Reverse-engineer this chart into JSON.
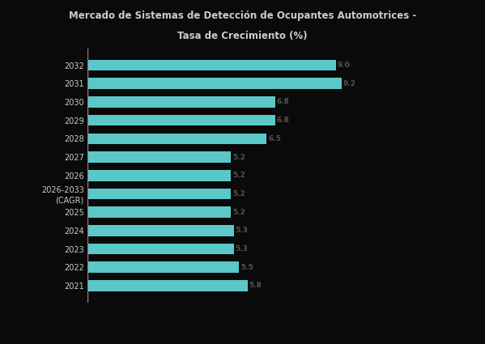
{
  "title_line1": "Mercado de Sistemas de Detección de Ocupantes Automotrices -",
  "title_line2": "Tasa de Crecimiento (%)",
  "bar_color": "#5BC8C8",
  "background_color": "#0a0a0a",
  "text_color": "#cccccc",
  "label_color": "#555555",
  "categories": [
    "2021",
    "2022",
    "2023",
    "2024",
    "2025",
    "2026-2033\n(CAGR)",
    "2026",
    "2027",
    "2028",
    "2029",
    "2030",
    "2031",
    "2032"
  ],
  "values": [
    5.8,
    5.5,
    5.3,
    5.3,
    5.2,
    5.2,
    5.2,
    5.2,
    6.5,
    6.8,
    6.8,
    9.2,
    9.0
  ],
  "value_labels": [
    "5.8",
    "5.5",
    "5.3",
    "5.3",
    "5.2",
    "5.2",
    "5.2",
    "5.2",
    "6.5",
    "6.8",
    "6.8",
    "9.2",
    "9.0"
  ],
  "xlim": [
    0,
    13
  ],
  "legend_label": "Mercado de Sistemas de Detección de Ocupantes Automotrices"
}
